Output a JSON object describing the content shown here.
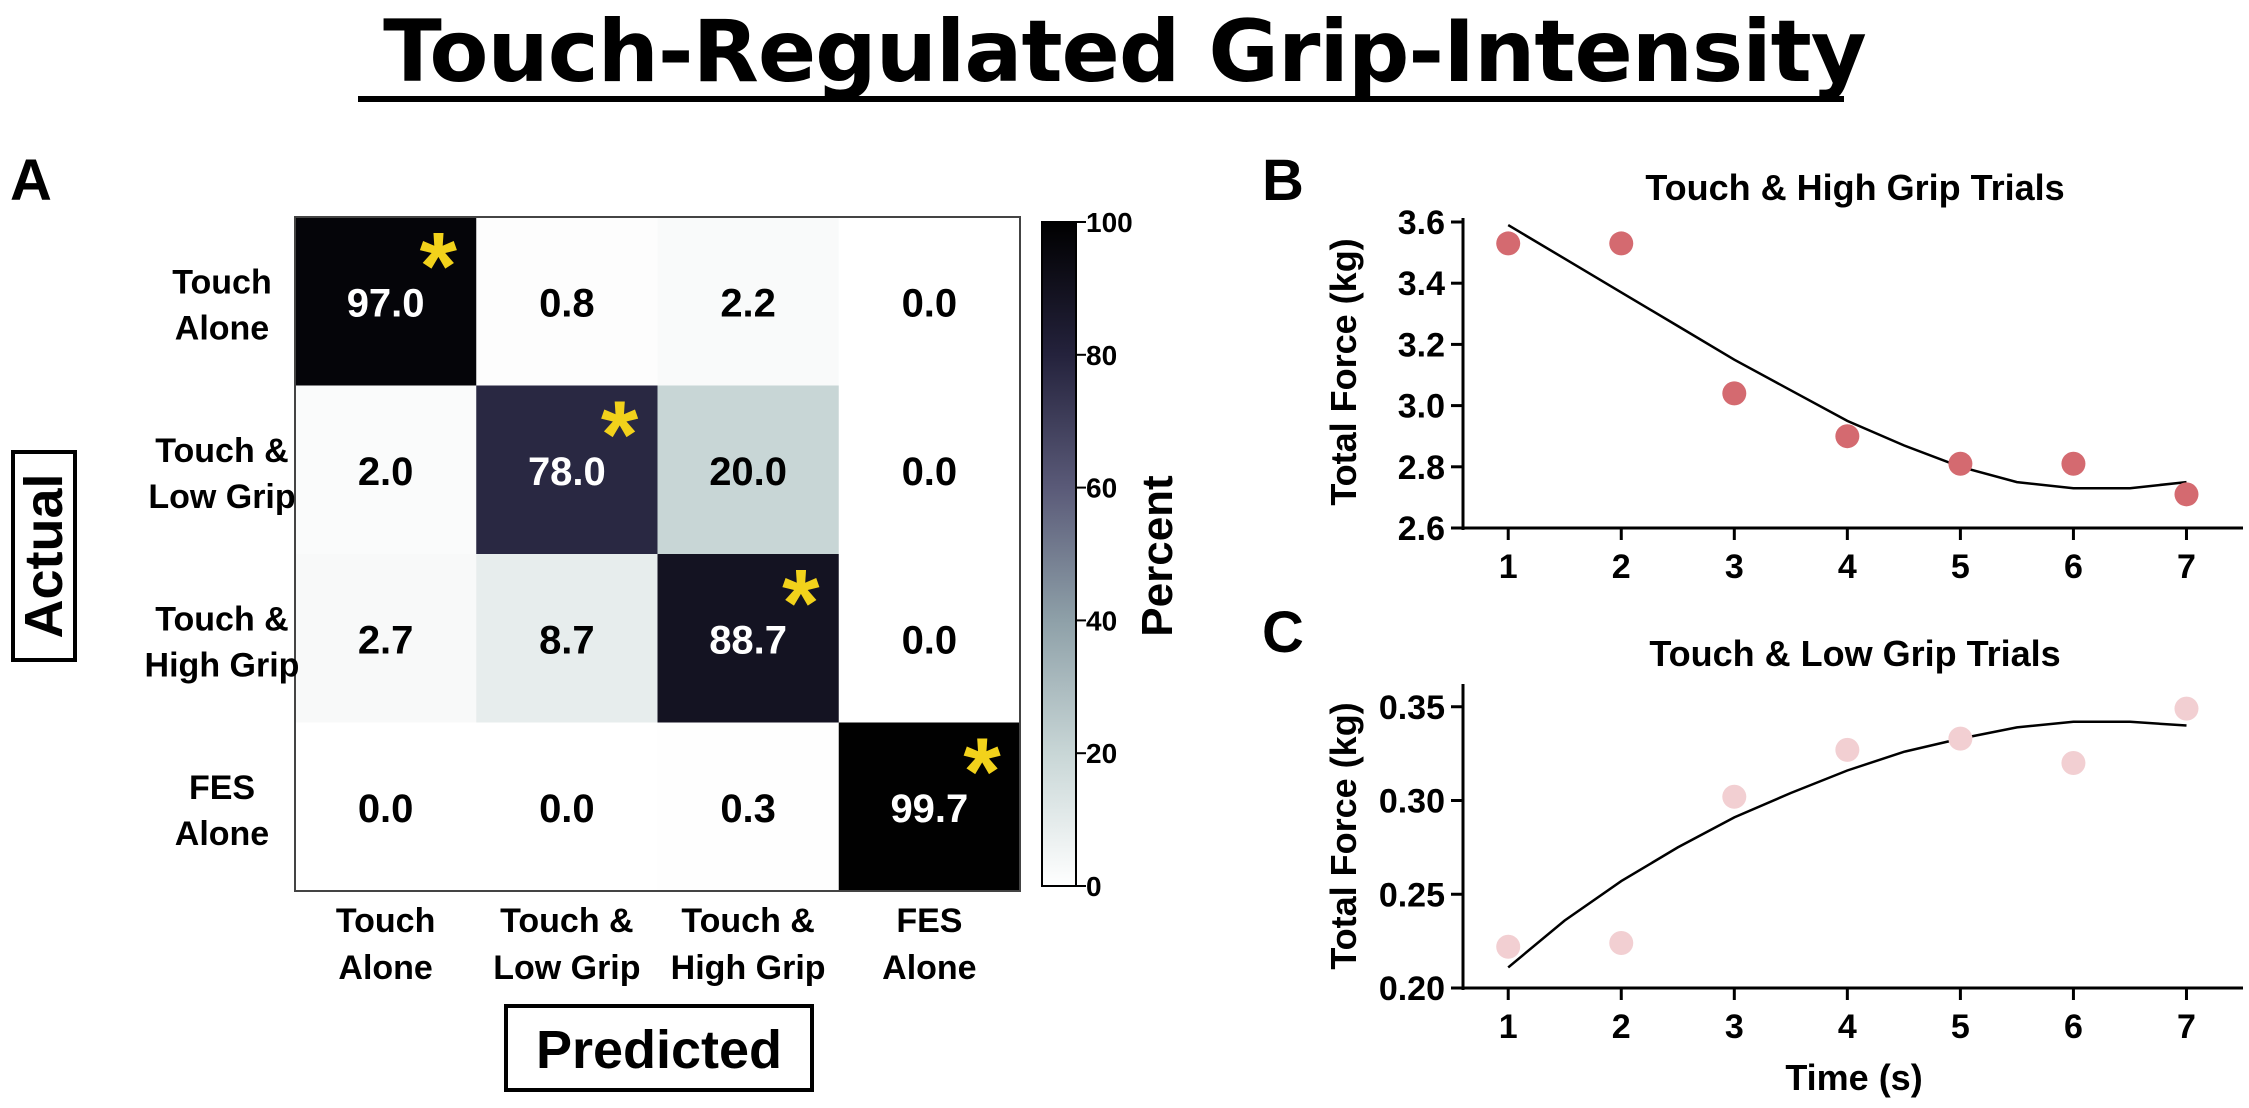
{
  "title": "Touch-Regulated Grip-Intensity",
  "panels": {
    "a": "A",
    "b": "B",
    "c": "C"
  },
  "chart_data": [
    {
      "type": "heatmap",
      "panel": "A",
      "title": "",
      "xlabel": "Predicted",
      "ylabel": "Actual",
      "x_categories": [
        [
          "Touch",
          "Alone"
        ],
        [
          "Touch &",
          "Low Grip"
        ],
        [
          "Touch &",
          "High Grip"
        ],
        [
          "FES",
          "Alone"
        ]
      ],
      "y_categories": [
        [
          "Touch",
          "Alone"
        ],
        [
          "Touch &",
          "Low Grip"
        ],
        [
          "Touch &",
          "High Grip"
        ],
        [
          "FES",
          "Alone"
        ]
      ],
      "values": [
        [
          97.0,
          0.8,
          2.2,
          0.0
        ],
        [
          2.0,
          78.0,
          20.0,
          0.0
        ],
        [
          2.7,
          8.7,
          88.7,
          0.0
        ],
        [
          0.0,
          0.0,
          0.3,
          99.7
        ]
      ],
      "value_labels": [
        [
          "97.0",
          "0.8",
          "2.2",
          "0.0"
        ],
        [
          "2.0",
          "78.0",
          "20.0",
          "0.0"
        ],
        [
          "2.7",
          "8.7",
          "88.7",
          "0.0"
        ],
        [
          "0.0",
          "0.0",
          "0.3",
          "99.7"
        ]
      ],
      "significance_marker": "*",
      "significant_cells": [
        [
          0,
          0
        ],
        [
          1,
          1
        ],
        [
          2,
          2
        ],
        [
          3,
          3
        ]
      ],
      "marker_color": "#f2d21b",
      "colorbar": {
        "label": "Percent",
        "range": [
          0,
          100
        ],
        "ticks": [
          0,
          20,
          40,
          60,
          80,
          100
        ]
      }
    },
    {
      "type": "scatter",
      "panel": "B",
      "title": "Touch & High Grip Trials",
      "xlabel": "",
      "ylabel": "Total Force (kg)",
      "x": [
        1,
        2,
        3,
        4,
        5,
        6,
        7
      ],
      "y": [
        3.53,
        3.53,
        3.04,
        2.9,
        2.81,
        2.81,
        2.71
      ],
      "fit_curve": {
        "x": [
          1,
          1.5,
          2,
          2.5,
          3,
          3.5,
          4,
          4.5,
          5,
          5.5,
          6,
          6.5,
          7
        ],
        "y": [
          3.59,
          3.48,
          3.37,
          3.26,
          3.15,
          3.05,
          2.95,
          2.87,
          2.8,
          2.75,
          2.73,
          2.73,
          2.75
        ]
      },
      "xticks": [
        1,
        2,
        3,
        4,
        5,
        6,
        7
      ],
      "yticks": [
        "2.6",
        "2.8",
        "3.0",
        "3.2",
        "3.4",
        "3.6"
      ],
      "xlim": [
        0.6,
        7.5
      ],
      "ylim": [
        2.6,
        3.6
      ],
      "marker_color": "#d46a70"
    },
    {
      "type": "scatter",
      "panel": "C",
      "title": "Touch & Low Grip Trials",
      "xlabel": "Time (s)",
      "ylabel": "Total Force (kg)",
      "x": [
        1,
        2,
        3,
        4,
        5,
        6,
        7
      ],
      "y": [
        0.222,
        0.224,
        0.302,
        0.327,
        0.333,
        0.32,
        0.349
      ],
      "fit_curve": {
        "x": [
          1,
          1.5,
          2,
          2.5,
          3,
          3.5,
          4,
          4.5,
          5,
          5.5,
          6,
          6.5,
          7
        ],
        "y": [
          0.211,
          0.236,
          0.257,
          0.275,
          0.291,
          0.304,
          0.316,
          0.326,
          0.333,
          0.339,
          0.342,
          0.342,
          0.34
        ]
      },
      "xticks": [
        1,
        2,
        3,
        4,
        5,
        6,
        7
      ],
      "yticks": [
        "0.20",
        "0.25",
        "0.30",
        "0.35"
      ],
      "xlim": [
        0.6,
        7.5
      ],
      "ylim": [
        0.2,
        0.36
      ],
      "marker_color": "#f2cfd2"
    }
  ]
}
